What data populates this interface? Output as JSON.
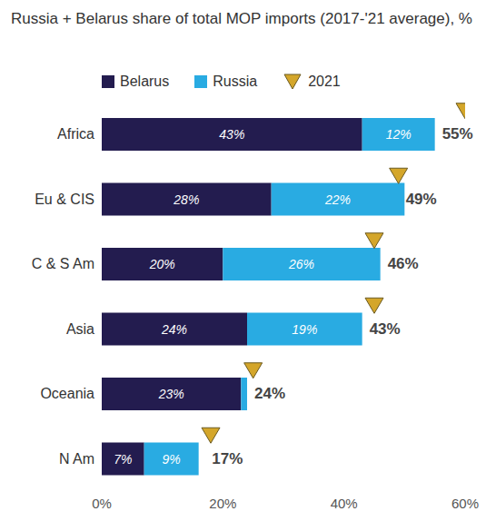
{
  "chart_data": {
    "type": "bar",
    "title": "Russia + Belarus share of total MOP imports (2017-'21 average), %",
    "orientation": "horizontal",
    "stacked": true,
    "data_labels": true,
    "legend": "top",
    "grid": false,
    "categories": [
      "Africa",
      "Eu & CIS",
      "C & S Am",
      "Asia",
      "Oceania",
      "N Am"
    ],
    "series": [
      {
        "name": "Belarus",
        "color": "#231c4f",
        "values": [
          43,
          28,
          20,
          24,
          23,
          7
        ],
        "value_labels": [
          "43%",
          "28%",
          "20%",
          "24%",
          "23%",
          "7%"
        ]
      },
      {
        "name": "Russia",
        "color": "#29abe2",
        "values": [
          12,
          22,
          26,
          19,
          1,
          9
        ],
        "value_labels": [
          "12%",
          "22%",
          "26%",
          "19%",
          null,
          "9%"
        ]
      },
      {
        "name": "2021",
        "type": "scatter",
        "marker": "triangle",
        "color": "#d4a62a",
        "values": [
          60,
          49,
          45,
          45,
          25,
          18
        ]
      }
    ],
    "totals": [
      55,
      49,
      46,
      43,
      24,
      17
    ],
    "total_labels": [
      "55%",
      "49%",
      "46%",
      "43%",
      "24%",
      "17%"
    ],
    "xlim": [
      0,
      60
    ],
    "xticks": [
      {
        "value": 0,
        "label": "0%"
      },
      {
        "value": 20,
        "label": "20%"
      },
      {
        "value": 40,
        "label": "40%"
      },
      {
        "value": 60,
        "label": "60%"
      }
    ]
  }
}
